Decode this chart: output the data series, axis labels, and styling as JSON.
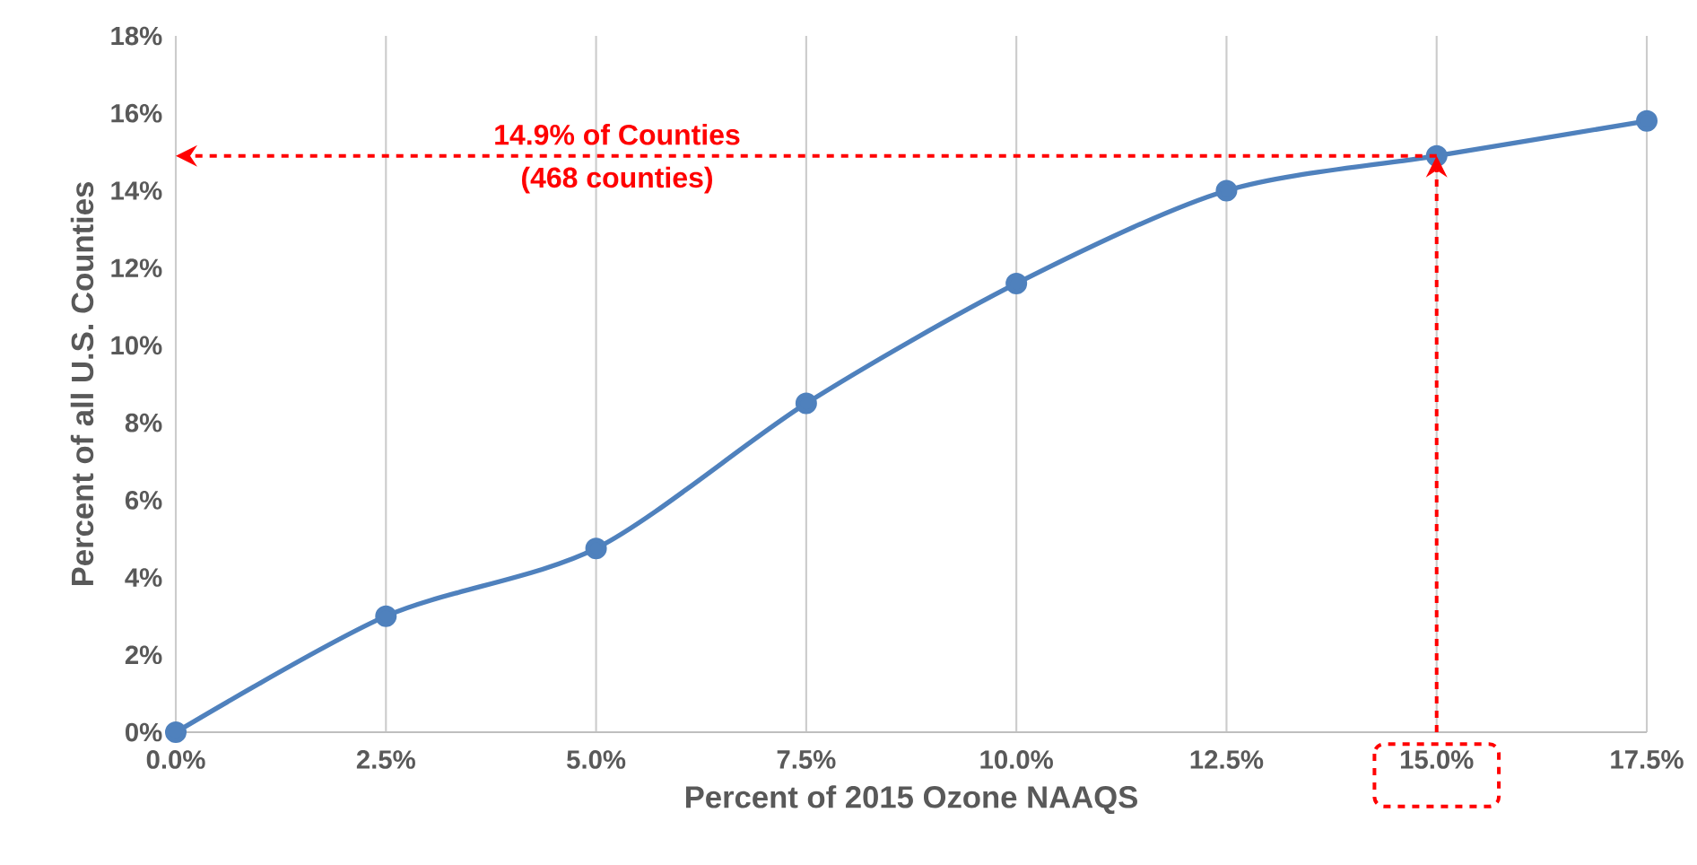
{
  "chart_data": {
    "type": "line",
    "xlabel": "Percent of 2015 Ozone NAAQS",
    "ylabel": "Percent of all U.S. Counties",
    "x": [
      0,
      2.5,
      5,
      7.5,
      10,
      12.5,
      15,
      17.5
    ],
    "series": [
      {
        "color": "#4f81bd",
        "values": [
          0,
          3.0,
          4.75,
          8.5,
          11.6,
          14.0,
          14.9,
          15.8
        ]
      }
    ],
    "xlim": [
      0,
      17.5
    ],
    "xticks": [
      {
        "value": 0,
        "label": "0.0%"
      },
      {
        "value": 2.5,
        "label": "2.5%"
      },
      {
        "value": 5,
        "label": "5.0%"
      },
      {
        "value": 7.5,
        "label": "7.5%"
      },
      {
        "value": 10,
        "label": "10.0%"
      },
      {
        "value": 12.5,
        "label": "12.5%"
      },
      {
        "value": 15,
        "label": "15.0%"
      },
      {
        "value": 17.5,
        "label": "17.5%"
      }
    ],
    "ylim": [
      0,
      18
    ],
    "yticks": [
      {
        "value": 0,
        "label": "0%"
      },
      {
        "value": 2,
        "label": "2%"
      },
      {
        "value": 4,
        "label": "4%"
      },
      {
        "value": 6,
        "label": "6%"
      },
      {
        "value": 8,
        "label": "8%"
      },
      {
        "value": 10,
        "label": "10%"
      },
      {
        "value": 12,
        "label": "12%"
      },
      {
        "value": 14,
        "label": "14%"
      },
      {
        "value": 16,
        "label": "16%"
      },
      {
        "value": 18,
        "label": "18%"
      }
    ],
    "grid": "x",
    "marker": "circle",
    "line_style": "solid",
    "ref_lines": [
      {
        "axis": "y",
        "value": 14.9,
        "color": "#ff0000",
        "line_style": "dashed"
      },
      {
        "axis": "x",
        "value": 15,
        "color": "#ff0000",
        "line_style": "dashed"
      }
    ],
    "annotations": [
      "14.9% of Counties",
      "(468 counties)"
    ]
  }
}
